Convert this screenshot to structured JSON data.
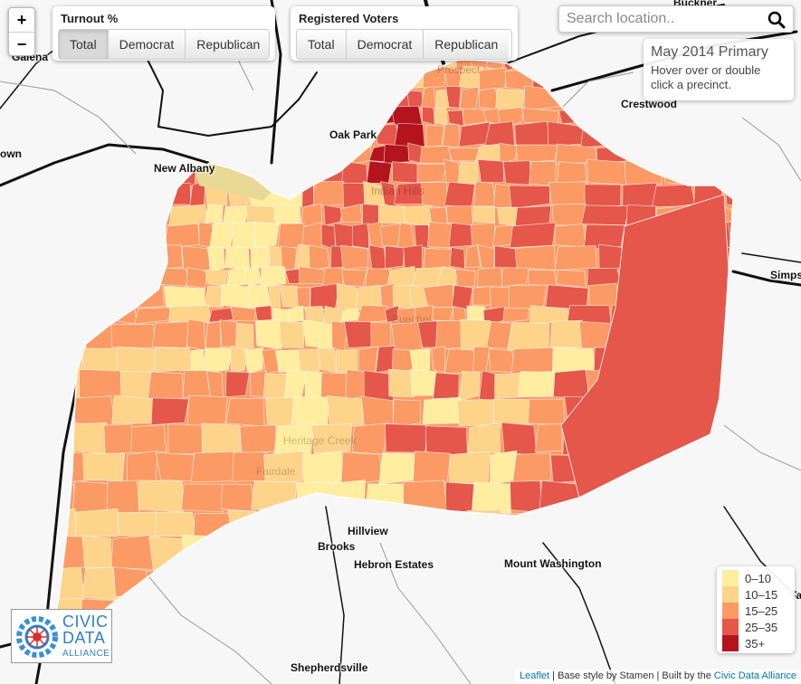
{
  "turnout_panel": {
    "title": "Turnout %",
    "buttons": [
      "Total",
      "Democrat",
      "Republican"
    ],
    "active": "Total"
  },
  "voters_panel": {
    "title": "Registered Voters",
    "buttons": [
      "Total",
      "Democrat",
      "Republican"
    ]
  },
  "zoom": {
    "in": "+",
    "out": "−"
  },
  "search": {
    "placeholder": "Search location.."
  },
  "info": {
    "title": "May 2014 Primary",
    "body": "Hover over or double click a precinct."
  },
  "legend": {
    "items": [
      {
        "label": "0–10",
        "color": "#ffeda0"
      },
      {
        "label": "10–15",
        "color": "#fed38a"
      },
      {
        "label": "15–25",
        "color": "#fb9a64"
      },
      {
        "label": "25–35",
        "color": "#e4574a"
      },
      {
        "label": "35+",
        "color": "#b3141e"
      }
    ]
  },
  "places": [
    "Galena",
    "Buckner",
    "Crestwood",
    "Oak Park",
    "New Albany",
    "own",
    "Simps",
    "Hillview",
    "Brooks",
    "Hebron Estates",
    "Mount Washington",
    "Shepherdsville",
    "Ta"
  ],
  "faint_places": [
    "Indian Hills",
    "Heritage Creek",
    "Fairdale",
    "Buechel",
    "Prospect"
  ],
  "logo": {
    "line1": "CIVIC",
    "line2": "DATA",
    "line3": "ALLIANCE"
  },
  "attribution": {
    "leaflet": "Leaflet",
    "middle": " | Base style by Stamen | Built by the ",
    "cda": "Civic Data Alliance"
  },
  "colors": {
    "map_background": "#f7f7f7",
    "boundary_line": "#ffffff",
    "roads": "#111111",
    "accent_link": "#0078a8",
    "logo_blue": "#2f80c9"
  }
}
